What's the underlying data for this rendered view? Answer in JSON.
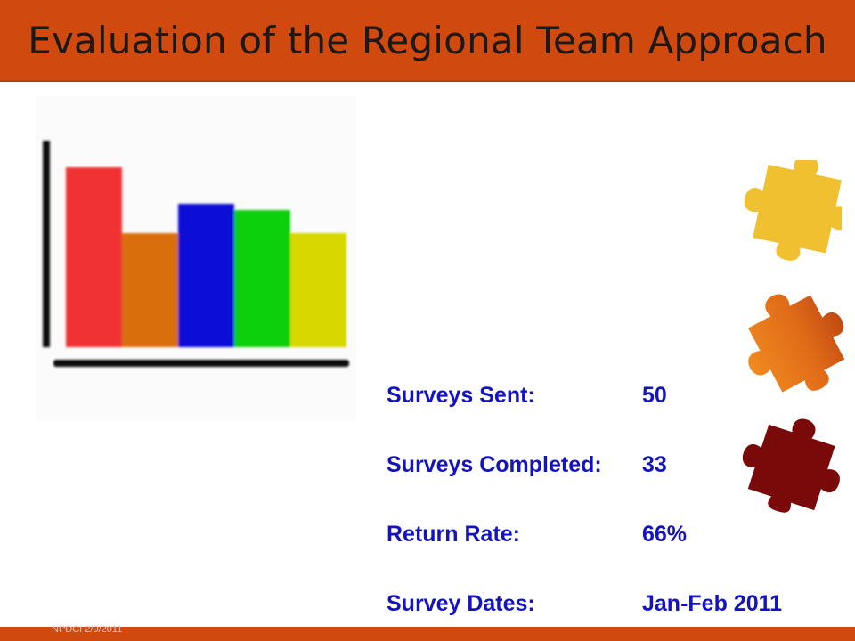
{
  "slide": {
    "title": "Evaluation of the Regional Team Approach",
    "footer": "NPDCI  2/9/2011"
  },
  "colors": {
    "title_bar": "#d04a0f",
    "stat_text": "#1313c4",
    "bars": [
      "#f03030",
      "#d96e10",
      "#0a10d8",
      "#10d010",
      "#d8d800"
    ],
    "puzzle_pieces": [
      "#f0c030",
      "#e67820",
      "#7a0a0a"
    ]
  },
  "icons": [
    "bar-chart-clipart",
    "puzzle-piece-yellow-icon",
    "puzzle-piece-orange-icon",
    "puzzle-piece-maroon-icon"
  ],
  "stats": [
    {
      "label": "Surveys Sent:",
      "value": "50"
    },
    {
      "label": "Surveys Completed:",
      "value": "33"
    },
    {
      "label": "Return Rate:",
      "value": "66%"
    },
    {
      "label": "Survey Dates:",
      "value": "Jan-Feb 2011"
    }
  ]
}
